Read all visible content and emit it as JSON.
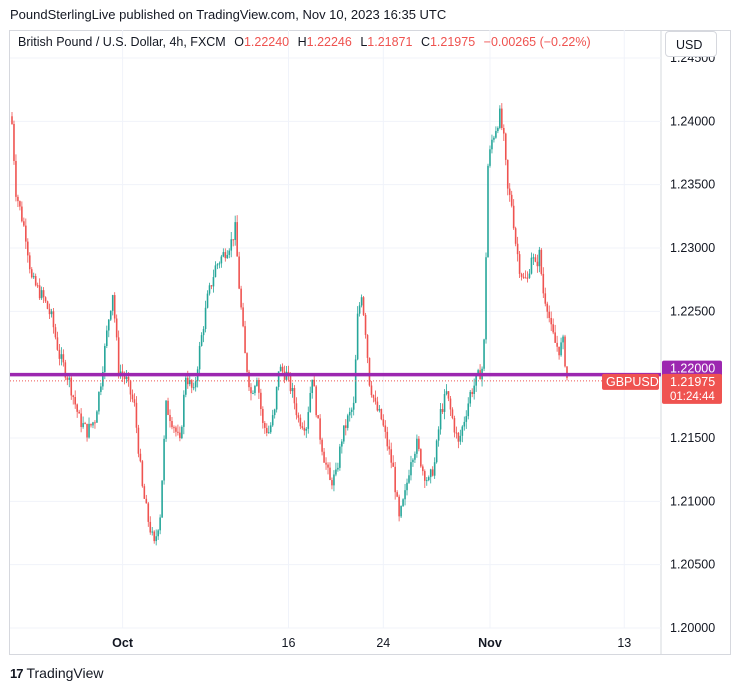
{
  "header": {
    "publisher": "PoundSterlingLive published on TradingView.com, Nov 10, 2023 16:35 UTC"
  },
  "legend": {
    "symbol": "British Pound / U.S. Dollar, 4h, FXCM",
    "open_label": "O",
    "open": "1.22240",
    "high_label": "H",
    "high": "1.22246",
    "low_label": "L",
    "low": "1.21871",
    "close_label": "C",
    "close": "1.21975",
    "change": "−0.00265 (−0.22%)"
  },
  "currency_button": "USD",
  "footer": {
    "brand": "TradingView",
    "logo": "17"
  },
  "colors": {
    "up": "#26a69a",
    "down": "#ef5350",
    "hline": "#9c27b0",
    "price_tag": "#ef5350"
  },
  "chart_data": {
    "type": "candlestick",
    "title": "British Pound / U.S. Dollar, 4h, FXCM",
    "ylim": [
      1.2,
      1.245
    ],
    "y_ticks": [
      "1.24500",
      "1.24000",
      "1.23500",
      "1.23000",
      "1.22500",
      "1.22000",
      "1.21500",
      "1.21000",
      "1.20500",
      "1.20000"
    ],
    "x_ticks": [
      "Oct",
      "16",
      "24",
      "Nov",
      "13"
    ],
    "horizontal_line": {
      "value": 1.22,
      "label": "1.22000"
    },
    "last_price": {
      "value": 1.21975,
      "symbol_label": "GBPUSD",
      "value_label": "1.21975",
      "countdown": "01:24:44"
    },
    "path_anchors": [
      {
        "x": 0,
        "y": 1.2398
      },
      {
        "x": 2,
        "y": 1.2345
      },
      {
        "x": 7,
        "y": 1.231
      },
      {
        "x": 10,
        "y": 1.2275
      },
      {
        "x": 14,
        "y": 1.2265
      },
      {
        "x": 16,
        "y": 1.226
      },
      {
        "x": 20,
        "y": 1.2245
      },
      {
        "x": 24,
        "y": 1.2215
      },
      {
        "x": 29,
        "y": 1.2195
      },
      {
        "x": 34,
        "y": 1.2165
      },
      {
        "x": 38,
        "y": 1.2155
      },
      {
        "x": 42,
        "y": 1.2165
      },
      {
        "x": 45,
        "y": 1.2195
      },
      {
        "x": 49,
        "y": 1.2245
      },
      {
        "x": 51,
        "y": 1.2265
      },
      {
        "x": 54,
        "y": 1.2205
      },
      {
        "x": 58,
        "y": 1.2195
      },
      {
        "x": 62,
        "y": 1.2175
      },
      {
        "x": 66,
        "y": 1.211
      },
      {
        "x": 69,
        "y": 1.2085
      },
      {
        "x": 72,
        "y": 1.2065
      },
      {
        "x": 75,
        "y": 1.209
      },
      {
        "x": 78,
        "y": 1.2175
      },
      {
        "x": 82,
        "y": 1.216
      },
      {
        "x": 85,
        "y": 1.2145
      },
      {
        "x": 88,
        "y": 1.22
      },
      {
        "x": 92,
        "y": 1.2185
      },
      {
        "x": 95,
        "y": 1.222
      },
      {
        "x": 99,
        "y": 1.226
      },
      {
        "x": 103,
        "y": 1.2285
      },
      {
        "x": 107,
        "y": 1.2295
      },
      {
        "x": 111,
        "y": 1.2305
      },
      {
        "x": 113,
        "y": 1.2315
      },
      {
        "x": 115,
        "y": 1.227
      },
      {
        "x": 118,
        "y": 1.2215
      },
      {
        "x": 121,
        "y": 1.2185
      },
      {
        "x": 124,
        "y": 1.22
      },
      {
        "x": 127,
        "y": 1.216
      },
      {
        "x": 130,
        "y": 1.2155
      },
      {
        "x": 133,
        "y": 1.217
      },
      {
        "x": 135,
        "y": 1.2205
      },
      {
        "x": 139,
        "y": 1.22
      },
      {
        "x": 142,
        "y": 1.2185
      },
      {
        "x": 145,
        "y": 1.2165
      },
      {
        "x": 149,
        "y": 1.216
      },
      {
        "x": 152,
        "y": 1.22
      },
      {
        "x": 155,
        "y": 1.216
      },
      {
        "x": 158,
        "y": 1.2135
      },
      {
        "x": 161,
        "y": 1.2115
      },
      {
        "x": 164,
        "y": 1.212
      },
      {
        "x": 167,
        "y": 1.215
      },
      {
        "x": 170,
        "y": 1.2165
      },
      {
        "x": 173,
        "y": 1.2175
      },
      {
        "x": 175,
        "y": 1.2245
      },
      {
        "x": 177,
        "y": 1.2265
      },
      {
        "x": 179,
        "y": 1.2235
      },
      {
        "x": 181,
        "y": 1.2195
      },
      {
        "x": 184,
        "y": 1.2175
      },
      {
        "x": 187,
        "y": 1.2165
      },
      {
        "x": 190,
        "y": 1.2145
      },
      {
        "x": 193,
        "y": 1.2125
      },
      {
        "x": 196,
        "y": 1.2085
      },
      {
        "x": 199,
        "y": 1.2105
      },
      {
        "x": 202,
        "y": 1.2135
      },
      {
        "x": 205,
        "y": 1.2145
      },
      {
        "x": 208,
        "y": 1.2125
      },
      {
        "x": 211,
        "y": 1.2115
      },
      {
        "x": 214,
        "y": 1.213
      },
      {
        "x": 217,
        "y": 1.217
      },
      {
        "x": 220,
        "y": 1.2185
      },
      {
        "x": 223,
        "y": 1.2165
      },
      {
        "x": 226,
        "y": 1.2145
      },
      {
        "x": 229,
        "y": 1.2165
      },
      {
        "x": 232,
        "y": 1.2185
      },
      {
        "x": 235,
        "y": 1.2195
      },
      {
        "x": 238,
        "y": 1.2205
      },
      {
        "x": 239,
        "y": 1.2225
      },
      {
        "x": 241,
        "y": 1.2365
      },
      {
        "x": 243,
        "y": 1.2385
      },
      {
        "x": 245,
        "y": 1.2395
      },
      {
        "x": 247,
        "y": 1.2405
      },
      {
        "x": 249,
        "y": 1.2385
      },
      {
        "x": 251,
        "y": 1.2345
      },
      {
        "x": 253,
        "y": 1.2335
      },
      {
        "x": 255,
        "y": 1.2305
      },
      {
        "x": 257,
        "y": 1.2285
      },
      {
        "x": 259,
        "y": 1.2275
      },
      {
        "x": 261,
        "y": 1.2275
      },
      {
        "x": 263,
        "y": 1.2295
      },
      {
        "x": 265,
        "y": 1.2285
      },
      {
        "x": 267,
        "y": 1.2295
      },
      {
        "x": 269,
        "y": 1.2265
      },
      {
        "x": 271,
        "y": 1.2255
      },
      {
        "x": 273,
        "y": 1.2235
      },
      {
        "x": 275,
        "y": 1.2225
      },
      {
        "x": 277,
        "y": 1.222
      },
      {
        "x": 279,
        "y": 1.2225
      },
      {
        "x": 281,
        "y": 1.21975
      }
    ]
  }
}
